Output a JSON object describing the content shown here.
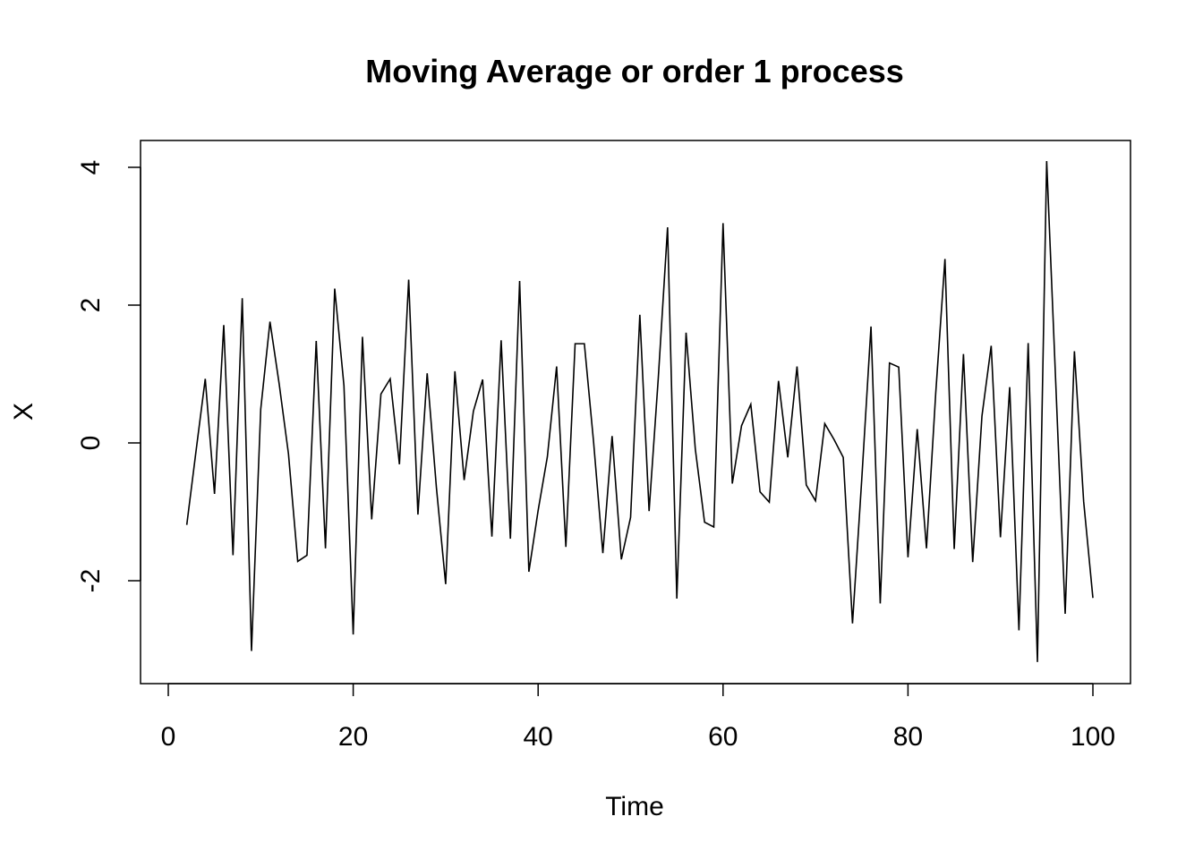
{
  "chart_data": {
    "type": "line",
    "title": "Moving Average or order 1 process",
    "xlabel": "Time",
    "ylabel": "X",
    "xlim": [
      0,
      100
    ],
    "ylim": [
      -3.2,
      4.1
    ],
    "x_ticks": [
      0,
      20,
      40,
      60,
      80,
      100
    ],
    "y_ticks": [
      -2,
      0,
      2,
      4
    ],
    "grid": false,
    "legend": "none",
    "line_color": "#000000",
    "series": [
      {
        "x": [
          2,
          3,
          4,
          5,
          6,
          7,
          8,
          9,
          10,
          11,
          12,
          13,
          14,
          15,
          16,
          17,
          18,
          19,
          20,
          21,
          22,
          23,
          24,
          25,
          26,
          27,
          28,
          29,
          30,
          31,
          32,
          33,
          34,
          35,
          36,
          37,
          38,
          39,
          40,
          41,
          42,
          43,
          44,
          45,
          46,
          47,
          48,
          49,
          50,
          51,
          52,
          53,
          54,
          55,
          56,
          57,
          58,
          59,
          60,
          61,
          62,
          63,
          64,
          65,
          66,
          67,
          68,
          69,
          70,
          71,
          72,
          73,
          74,
          75,
          76,
          77,
          78,
          79,
          80,
          81,
          82,
          83,
          84,
          85,
          86,
          87,
          88,
          89,
          90,
          91,
          92,
          93,
          94,
          95,
          96,
          97,
          98,
          99,
          100
        ],
        "values": [
          -1.19,
          -0.12,
          0.93,
          -0.74,
          1.71,
          -1.63,
          2.1,
          -3.02,
          0.49,
          1.76,
          0.85,
          -0.16,
          -1.72,
          -1.63,
          1.48,
          -1.53,
          2.24,
          0.83,
          -2.78,
          1.54,
          -1.11,
          0.71,
          0.93,
          -0.31,
          2.37,
          -1.04,
          1.01,
          -0.65,
          -2.05,
          1.04,
          -0.54,
          0.46,
          0.92,
          -1.36,
          1.49,
          -1.39,
          2.35,
          -1.87,
          -0.98,
          -0.2,
          1.11,
          -1.51,
          1.44,
          1.44,
          0.01,
          -1.6,
          0.1,
          -1.69,
          -1.08,
          1.86,
          -0.99,
          0.95,
          3.13,
          -2.26,
          1.6,
          -0.09,
          -1.15,
          -1.22,
          3.19,
          -0.59,
          0.25,
          0.56,
          -0.71,
          -0.86,
          0.9,
          -0.21,
          1.11,
          -0.61,
          -0.84,
          0.28,
          0.05,
          -0.21,
          -2.62,
          -0.53,
          1.69,
          -2.33,
          1.16,
          1.1,
          -1.66,
          0.2,
          -1.53,
          0.72,
          2.67,
          -1.54,
          1.29,
          -1.73,
          0.39,
          1.41,
          -1.37,
          0.81,
          -2.72,
          1.45,
          -3.18,
          4.09,
          0.81,
          -2.48,
          1.33,
          -0.85,
          -2.25
        ]
      }
    ]
  }
}
